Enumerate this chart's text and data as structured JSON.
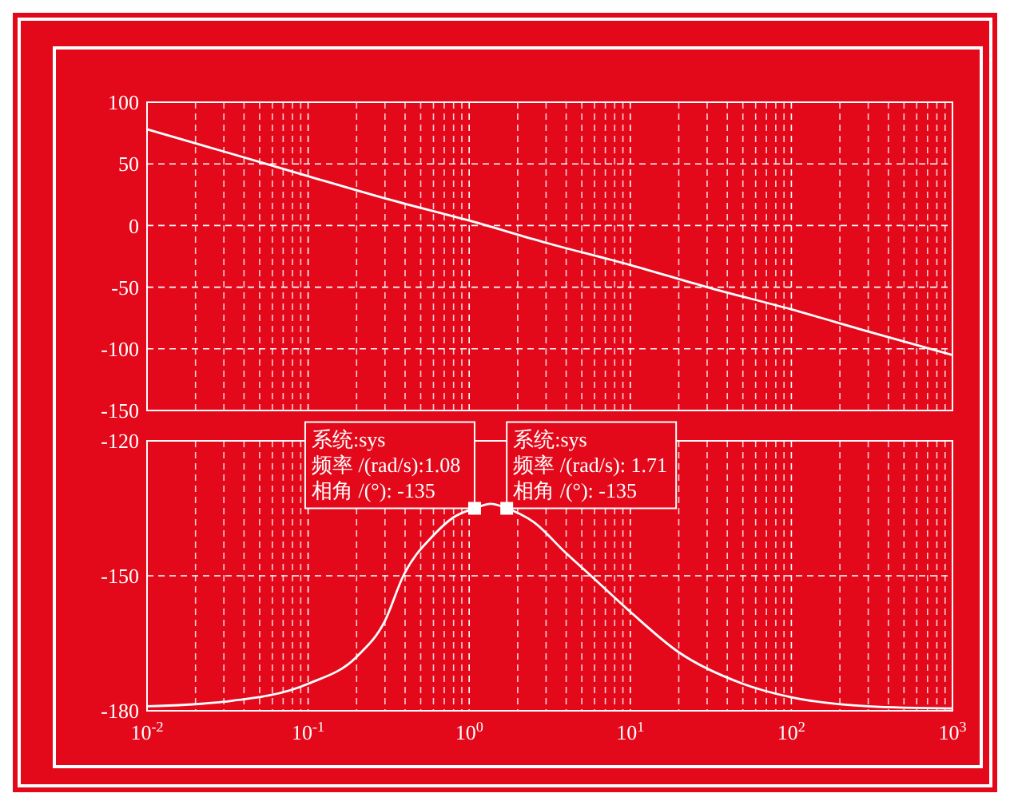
{
  "chart_data": [
    {
      "type": "line",
      "log": "x",
      "grid": true,
      "line_style": "solid",
      "marker": "none",
      "tick_labels": "y",
      "xlim": [
        0.01,
        1000
      ],
      "ylim": [
        -150,
        100
      ],
      "yticks": [
        -150,
        -100,
        -50,
        0,
        50,
        100
      ],
      "xticks": [
        {
          "value": 0.01,
          "label": null
        },
        {
          "value": 0.1,
          "label": null
        },
        {
          "value": 1,
          "label": null
        },
        {
          "value": 10,
          "label": null
        },
        {
          "value": 100,
          "label": null
        },
        {
          "value": 1000,
          "label": null
        }
      ],
      "series": [
        {
          "color": "#ffffff",
          "x": [
            0.01,
            0.03,
            0.1,
            0.3,
            1,
            3,
            10,
            30,
            100,
            300,
            1000
          ],
          "values": [
            78,
            60,
            40,
            22,
            4,
            -14,
            -32,
            -50,
            -68,
            -86,
            -105
          ]
        }
      ]
    },
    {
      "type": "line",
      "log": "x",
      "grid": true,
      "line_style": "solid",
      "marker": "none",
      "xlim": [
        0.01,
        1000
      ],
      "ylim": [
        -180,
        -120
      ],
      "yticks": [
        -180,
        -150,
        -120
      ],
      "xticks": [
        {
          "value": 0.01,
          "label": "10$^{-2}$"
        },
        {
          "value": 0.1,
          "label": "10$^{-1}$"
        },
        {
          "value": 1,
          "label": "10$^{0}$"
        },
        {
          "value": 10,
          "label": "10$^{1}$"
        },
        {
          "value": 100,
          "label": "10$^{2}$"
        },
        {
          "value": 1000,
          "label": "10$^{3}$"
        }
      ],
      "series": [
        {
          "color": "#ffffff",
          "x": [
            0.01,
            0.03,
            0.1,
            0.2,
            0.3,
            0.39,
            0.6,
            0.8,
            1.08,
            1.36,
            1.71,
            2.5,
            4,
            5.7,
            10,
            20,
            50,
            100,
            300,
            1000
          ],
          "values": [
            -179,
            -178,
            -174,
            -168,
            -160,
            -150,
            -141,
            -137,
            -135,
            -134,
            -135,
            -138,
            -145,
            -150,
            -158,
            -167,
            -174,
            -177,
            -179,
            -179.5
          ]
        }
      ],
      "annotations": [
        {
          "text": "系统:sys\n频率 /(rad/s):1.08\n相角 /(°): -135",
          "x": 1.08,
          "y": -135
        },
        {
          "text": "系统:sys\n频率 /(rad/s): 1.71\n相角 /(°): -135",
          "x": 1.71,
          "y": -135
        }
      ]
    }
  ]
}
